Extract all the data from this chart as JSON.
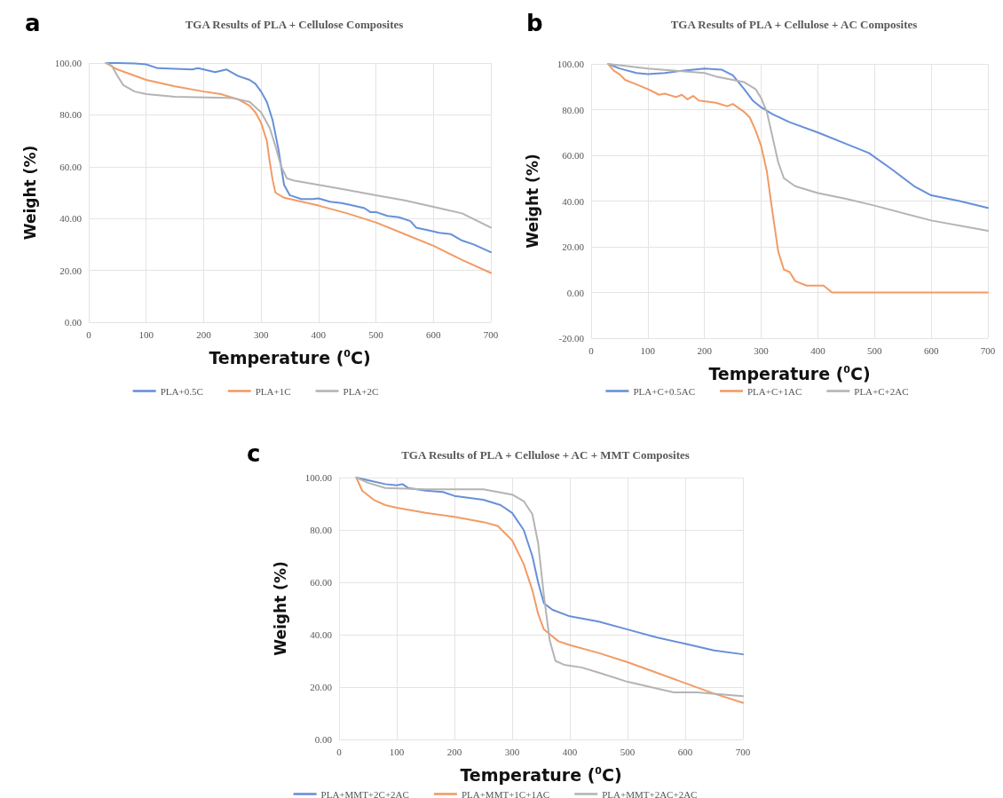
{
  "chart_data": [
    {
      "type": "line",
      "title": "TGA Results of PLA + Cellulose Composites",
      "xlabel": "Temperature ($^{0}$C)",
      "ylabel": "Weight (%)",
      "annotations": [
        "a"
      ],
      "xlim": [
        0,
        700
      ],
      "xticks": [
        0,
        100,
        200,
        300,
        400,
        500,
        600,
        700
      ],
      "ylim": [
        0,
        100
      ],
      "yticks": [
        {
          "value": 0,
          "label": "0.00"
        },
        {
          "value": 20,
          "label": "20.00"
        },
        {
          "value": 40,
          "label": "40.00"
        },
        {
          "value": 60,
          "label": "60.00"
        },
        {
          "value": 80,
          "label": "80.00"
        },
        {
          "value": 100,
          "label": "100.00"
        }
      ],
      "grid": true,
      "legend": "bottom",
      "marker": "none",
      "line_style": "solid",
      "series": [
        {
          "name": "PLA+0.5C",
          "color": "#6790d8",
          "x": [
            30,
            50,
            80,
            100,
            120,
            150,
            180,
            190,
            200,
            220,
            240,
            260,
            280,
            290,
            300,
            310,
            320,
            330,
            335,
            340,
            350,
            370,
            390,
            400,
            420,
            440,
            460,
            480,
            490,
            500,
            520,
            540,
            560,
            570,
            590,
            610,
            630,
            650,
            670,
            700
          ],
          "values": [
            100,
            100,
            99.8,
            99.5,
            98,
            97.8,
            97.5,
            98,
            97.5,
            96.5,
            97.5,
            95,
            93.5,
            92,
            89,
            85,
            78,
            67,
            60,
            53,
            49,
            47.5,
            47.5,
            47.8,
            46.5,
            46,
            45,
            44,
            42.5,
            42.5,
            41,
            40.5,
            39,
            36.5,
            35.5,
            34.5,
            34,
            31.5,
            30,
            27
          ]
        },
        {
          "name": "PLA+1C",
          "color": "#f29b66",
          "x": [
            30,
            50,
            100,
            150,
            200,
            230,
            260,
            280,
            290,
            300,
            310,
            315,
            320,
            325,
            340,
            400,
            450,
            500,
            550,
            600,
            650,
            700
          ],
          "values": [
            100,
            97.5,
            93.5,
            91,
            89,
            88,
            86,
            83.5,
            81,
            77,
            70,
            62,
            55,
            50,
            48,
            45,
            42,
            38.5,
            34,
            29.5,
            24,
            19
          ]
        },
        {
          "name": "PLA+2C",
          "color": "#b4b4b4",
          "x": [
            30,
            40,
            50,
            60,
            80,
            100,
            150,
            250,
            280,
            300,
            315,
            325,
            335,
            345,
            360,
            400,
            450,
            500,
            550,
            600,
            650,
            700
          ],
          "values": [
            100,
            99,
            95,
            91.5,
            89,
            88,
            87,
            86.5,
            85,
            81,
            75,
            68,
            60,
            55.5,
            54.5,
            53,
            51,
            49,
            47,
            44.5,
            42,
            36.5
          ]
        }
      ]
    },
    {
      "type": "line",
      "title": "TGA Results of PLA + Cellulose + AC Composites",
      "xlabel": "Temperature ($^{0}$C)",
      "ylabel": "Weight (%)",
      "annotations": [
        "b"
      ],
      "xlim": [
        0,
        700
      ],
      "xticks": [
        0,
        100,
        200,
        300,
        400,
        500,
        600,
        700
      ],
      "ylim": [
        -20,
        100
      ],
      "yticks": [
        {
          "value": -20,
          "label": "-20.00"
        },
        {
          "value": 0,
          "label": "0.00"
        },
        {
          "value": 20,
          "label": "20.00"
        },
        {
          "value": 40,
          "label": "40.00"
        },
        {
          "value": 60,
          "label": "60.00"
        },
        {
          "value": 80,
          "label": "80.00"
        },
        {
          "value": 100,
          "label": "100.00"
        }
      ],
      "grid": true,
      "legend": "bottom",
      "marker": "none",
      "line_style": "solid",
      "series": [
        {
          "name": "PLA+C+0.5AC",
          "color": "#6790d8",
          "x": [
            30,
            50,
            80,
            100,
            130,
            160,
            200,
            230,
            250,
            270,
            285,
            300,
            320,
            350,
            400,
            450,
            490,
            530,
            570,
            600,
            650,
            700
          ],
          "values": [
            100,
            98,
            96,
            95.5,
            96,
            97,
            98,
            97.5,
            95,
            89,
            84,
            81,
            78,
            74.5,
            70,
            65,
            61,
            54,
            46.5,
            42.5,
            40,
            37
          ]
        },
        {
          "name": "PLA+C+1AC",
          "color": "#f29b66",
          "x": [
            30,
            40,
            50,
            60,
            80,
            100,
            120,
            130,
            150,
            160,
            170,
            180,
            190,
            220,
            240,
            250,
            270,
            280,
            290,
            300,
            310,
            320,
            330,
            340,
            350,
            360,
            380,
            400,
            410,
            425,
            500,
            600,
            700
          ],
          "values": [
            100,
            97,
            95.5,
            93,
            91,
            89,
            86.5,
            87,
            85.5,
            86.5,
            84.5,
            86,
            84,
            83,
            81.5,
            82.5,
            79,
            76.5,
            71,
            64,
            53,
            35,
            18,
            10,
            9,
            5,
            3,
            3,
            3,
            0,
            0,
            0,
            0
          ]
        },
        {
          "name": "PLA+C+2AC",
          "color": "#b4b4b4",
          "x": [
            30,
            100,
            150,
            200,
            220,
            250,
            270,
            290,
            300,
            310,
            320,
            330,
            340,
            360,
            400,
            450,
            500,
            600,
            700
          ],
          "values": [
            100,
            98,
            97,
            96,
            94.5,
            93,
            92,
            89,
            85,
            79,
            68,
            57,
            50,
            46.5,
            43.5,
            41,
            38,
            31.5,
            27
          ]
        }
      ]
    },
    {
      "type": "line",
      "title": "TGA Results of PLA + Cellulose + AC + MMT Composites",
      "xlabel": "Temperature ($^{0}$C)",
      "ylabel": "Weight (%)",
      "annotations": [
        "c"
      ],
      "xlim": [
        0,
        700
      ],
      "xticks": [
        0,
        100,
        200,
        300,
        400,
        500,
        600,
        700
      ],
      "ylim": [
        0,
        100
      ],
      "yticks": [
        {
          "value": 0,
          "label": "0.00"
        },
        {
          "value": 20,
          "label": "20.00"
        },
        {
          "value": 40,
          "label": "40.00"
        },
        {
          "value": 60,
          "label": "60.00"
        },
        {
          "value": 80,
          "label": "80.00"
        },
        {
          "value": 100,
          "label": "100.00"
        }
      ],
      "grid": true,
      "legend": "bottom",
      "marker": "none",
      "line_style": "solid",
      "series": [
        {
          "name": "PLA+MMT+2C+2AC",
          "color": "#6790d8",
          "x": [
            30,
            50,
            80,
            100,
            110,
            120,
            150,
            180,
            200,
            250,
            280,
            300,
            320,
            335,
            345,
            355,
            370,
            400,
            450,
            500,
            550,
            600,
            650,
            700
          ],
          "values": [
            100,
            99,
            97.5,
            97,
            97.5,
            96,
            95,
            94.5,
            93,
            91.5,
            89.5,
            86.5,
            80,
            70,
            60,
            52,
            49.5,
            47,
            45,
            42,
            39,
            36.5,
            34,
            32.5
          ]
        },
        {
          "name": "PLA+MMT+1C+1AC",
          "color": "#f29b66",
          "x": [
            30,
            40,
            60,
            80,
            100,
            150,
            200,
            250,
            275,
            300,
            320,
            335,
            345,
            355,
            380,
            400,
            450,
            500,
            550,
            600,
            650,
            700
          ],
          "values": [
            100,
            95,
            91.5,
            89.5,
            88.5,
            86.5,
            85,
            83,
            81.5,
            76,
            67,
            57,
            48,
            42,
            37.5,
            36,
            33,
            29.5,
            25.5,
            21.5,
            17.5,
            14
          ]
        },
        {
          "name": "PLA+MMT+2AC+2AC",
          "color": "#b4b4b4",
          "x": [
            30,
            50,
            80,
            150,
            200,
            250,
            300,
            320,
            335,
            345,
            355,
            365,
            375,
            390,
            420,
            450,
            500,
            550,
            580,
            620,
            700
          ],
          "values": [
            100,
            98,
            96,
            95.5,
            95.5,
            95.5,
            93.5,
            91,
            86,
            75,
            55,
            38,
            30,
            28.5,
            27.5,
            25.5,
            22,
            19.5,
            18,
            18,
            16.5
          ]
        }
      ]
    }
  ]
}
